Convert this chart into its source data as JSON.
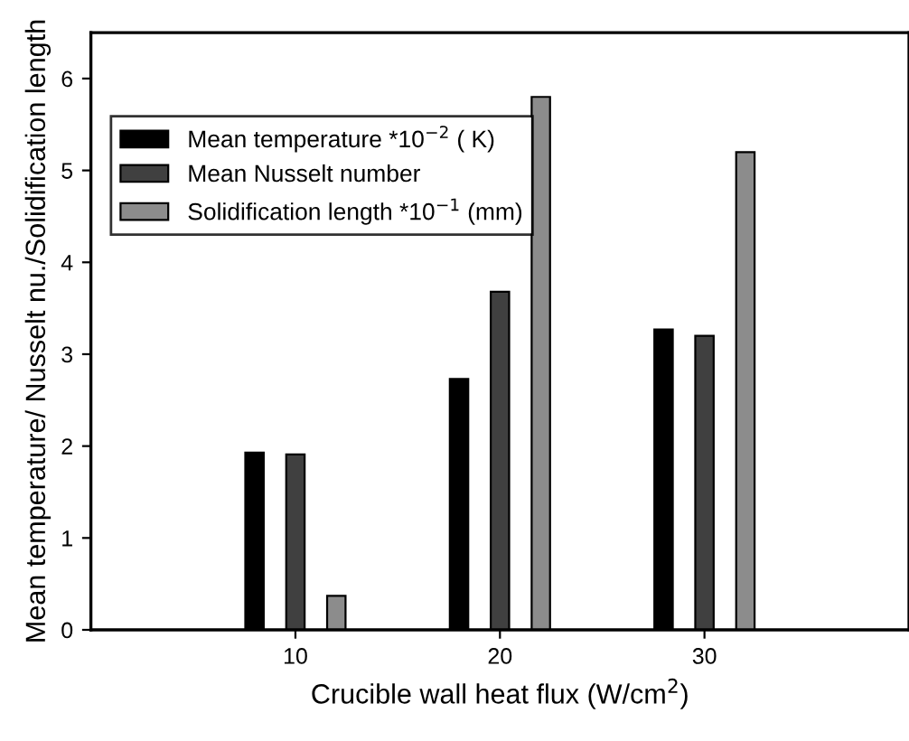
{
  "chart_data": {
    "type": "bar",
    "xlabel": "Crucible wall heat flux (W/cm$^{2}$)",
    "ylabel": "Mean temperature/ Nusselt nu./Solidification length",
    "x": [
      10,
      20,
      30
    ],
    "series": [
      {
        "name": "Mean temperature *10$^{−2}$ ( K)",
        "color": "#000000",
        "values": [
          1.93,
          2.73,
          3.27
        ]
      },
      {
        "name": "Mean Nusselt number",
        "color": "#404040",
        "values": [
          1.91,
          3.68,
          3.2
        ]
      },
      {
        "name": "Solidification length *10$^{−1}$ (mm)",
        "color": "#8c8c8c",
        "values": [
          0.37,
          5.8,
          5.2
        ]
      }
    ],
    "xlim": [
      0,
      40
    ],
    "xticks": [
      10,
      20,
      30
    ],
    "ylim": [
      0,
      6.5
    ],
    "yticks": [
      0,
      1,
      2,
      3,
      4,
      5,
      6
    ],
    "grid": false,
    "legend": "top left"
  }
}
